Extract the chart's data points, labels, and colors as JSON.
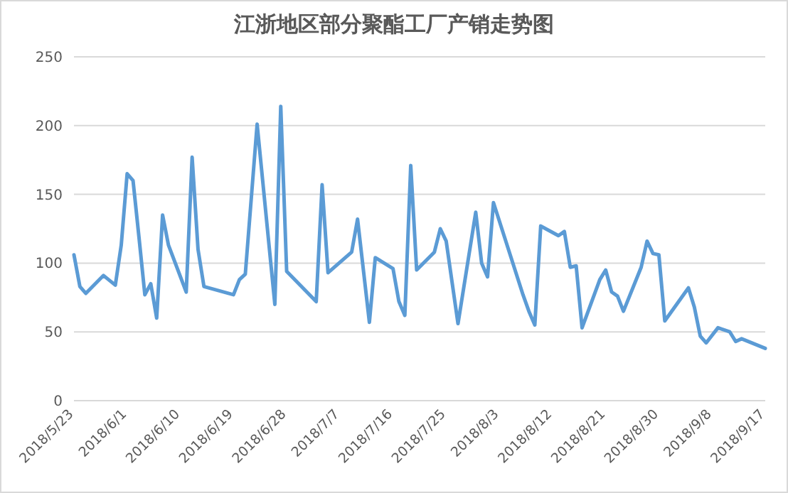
{
  "chart_data": {
    "type": "line",
    "title": "江浙地区部分聚酯工厂产销走势图",
    "x": [
      "2018-05-23",
      "2018-05-24",
      "2018-05-25",
      "2018-05-28",
      "2018-05-30",
      "2018-05-31",
      "2018-06-01",
      "2018-06-02",
      "2018-06-03",
      "2018-06-04",
      "2018-06-05",
      "2018-06-06",
      "2018-06-07",
      "2018-06-08",
      "2018-06-11",
      "2018-06-12",
      "2018-06-13",
      "2018-06-14",
      "2018-06-19",
      "2018-06-20",
      "2018-06-21",
      "2018-06-23",
      "2018-06-26",
      "2018-06-27",
      "2018-06-28",
      "2018-07-03",
      "2018-07-04",
      "2018-07-05",
      "2018-07-09",
      "2018-07-10",
      "2018-07-12",
      "2018-07-13",
      "2018-07-16",
      "2018-07-17",
      "2018-07-18",
      "2018-07-19",
      "2018-07-20",
      "2018-07-23",
      "2018-07-24",
      "2018-07-25",
      "2018-07-27",
      "2018-07-30",
      "2018-07-31",
      "2018-08-01",
      "2018-08-02",
      "2018-08-07",
      "2018-08-08",
      "2018-08-09",
      "2018-08-10",
      "2018-08-13",
      "2018-08-14",
      "2018-08-15",
      "2018-08-16",
      "2018-08-17",
      "2018-08-20",
      "2018-08-21",
      "2018-08-22",
      "2018-08-23",
      "2018-08-24",
      "2018-08-27",
      "2018-08-28",
      "2018-08-29",
      "2018-08-30",
      "2018-08-31",
      "2018-09-04",
      "2018-09-05",
      "2018-09-06",
      "2018-09-07",
      "2018-09-09",
      "2018-09-11",
      "2018-09-12",
      "2018-09-13",
      "2018-09-17"
    ],
    "series": [
      {
        "color": "#5b9bd5",
        "values": [
          106,
          83,
          78,
          91,
          84,
          113,
          165,
          160,
          119,
          77,
          85,
          60,
          135,
          113,
          79,
          177,
          110,
          83,
          77,
          88,
          92,
          201,
          70,
          214,
          94,
          72,
          157,
          93,
          108,
          132,
          57,
          104,
          96,
          72,
          62,
          171,
          95,
          108,
          125,
          116,
          56,
          137,
          100,
          90,
          144,
          77,
          65,
          55,
          127,
          120,
          123,
          97,
          98,
          53,
          88,
          95,
          79,
          76,
          65,
          97,
          116,
          107,
          106,
          58,
          82,
          68,
          47,
          42,
          53,
          50,
          43,
          45,
          38
        ]
      }
    ],
    "xlim": [
      "2018-05-23",
      "2018-09-17"
    ],
    "xticks": [
      {
        "value": "2018-05-23",
        "label": "2018/5/23"
      },
      {
        "value": "2018-06-01",
        "label": "2018/6/1"
      },
      {
        "value": "2018-06-10",
        "label": "2018/6/10"
      },
      {
        "value": "2018-06-19",
        "label": "2018/6/19"
      },
      {
        "value": "2018-06-28",
        "label": "2018/6/28"
      },
      {
        "value": "2018-07-07",
        "label": "2018/7/7"
      },
      {
        "value": "2018-07-16",
        "label": "2018/7/16"
      },
      {
        "value": "2018-07-25",
        "label": "2018/7/25"
      },
      {
        "value": "2018-08-03",
        "label": "2018/8/3"
      },
      {
        "value": "2018-08-12",
        "label": "2018/8/12"
      },
      {
        "value": "2018-08-21",
        "label": "2018/8/21"
      },
      {
        "value": "2018-08-30",
        "label": "2018/8/30"
      },
      {
        "value": "2018-09-08",
        "label": "2018/9/8"
      },
      {
        "value": "2018-09-17",
        "label": "2018/9/17"
      }
    ],
    "ylim": [
      0,
      250
    ],
    "yticks": [
      0,
      50,
      100,
      150,
      200,
      250
    ],
    "grid": "y",
    "marker": "none",
    "line_style": "solid"
  }
}
